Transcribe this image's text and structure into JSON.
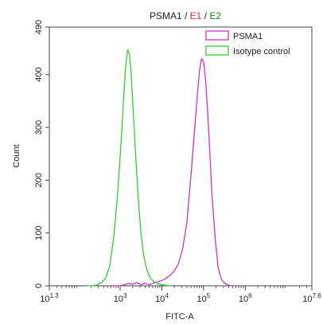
{
  "chart_data": {
    "type": "line",
    "title_parts": [
      {
        "text": "PSMA1",
        "color": "#222222"
      },
      {
        "text": " / ",
        "color": "#222222"
      },
      {
        "text": "E1",
        "color": "#d32f2f"
      },
      {
        "text": " / ",
        "color": "#222222"
      },
      {
        "text": "E2",
        "color": "#1a8f1a"
      }
    ],
    "xlabel": "FITC-A",
    "ylabel": "Count",
    "x_scale": "log10",
    "xlim": [
      1.3,
      7.6
    ],
    "ylim": [
      0,
      490
    ],
    "x_ticks": [
      {
        "exp": 1.3,
        "base": "10",
        "sup": "1.3"
      },
      {
        "exp": 3,
        "base": "10",
        "sup": "3"
      },
      {
        "exp": 4,
        "base": "10",
        "sup": "4"
      },
      {
        "exp": 5,
        "base": "10",
        "sup": "5"
      },
      {
        "exp": 6,
        "base": "10",
        "sup": "6"
      },
      {
        "exp": 7.6,
        "base": "10",
        "sup": "7.6"
      }
    ],
    "y_ticks": [
      0,
      100,
      200,
      300,
      400,
      490
    ],
    "legend_position": "top-right",
    "grid": false,
    "series": [
      {
        "name": "PSMA1",
        "color": "#cc33cc",
        "points": [
          [
            2.8,
            0
          ],
          [
            3.0,
            0
          ],
          [
            3.1,
            2
          ],
          [
            3.2,
            4
          ],
          [
            3.3,
            3
          ],
          [
            3.4,
            6
          ],
          [
            3.5,
            2
          ],
          [
            3.6,
            5
          ],
          [
            3.7,
            2
          ],
          [
            3.8,
            5
          ],
          [
            3.9,
            8
          ],
          [
            4.0,
            10
          ],
          [
            4.1,
            14
          ],
          [
            4.2,
            20
          ],
          [
            4.3,
            28
          ],
          [
            4.4,
            42
          ],
          [
            4.5,
            70
          ],
          [
            4.6,
            120
          ],
          [
            4.7,
            210
          ],
          [
            4.78,
            290
          ],
          [
            4.85,
            360
          ],
          [
            4.9,
            405
          ],
          [
            4.95,
            430
          ],
          [
            5.0,
            425
          ],
          [
            5.05,
            390
          ],
          [
            5.1,
            330
          ],
          [
            5.15,
            255
          ],
          [
            5.2,
            175
          ],
          [
            5.28,
            90
          ],
          [
            5.35,
            35
          ],
          [
            5.43,
            12
          ],
          [
            5.52,
            4
          ],
          [
            5.6,
            1
          ],
          [
            5.7,
            0
          ]
        ]
      },
      {
        "name": "Isotype control",
        "color": "#33cc33",
        "points": [
          [
            2.2,
            0
          ],
          [
            2.35,
            0
          ],
          [
            2.45,
            2
          ],
          [
            2.55,
            6
          ],
          [
            2.65,
            14
          ],
          [
            2.75,
            38
          ],
          [
            2.85,
            95
          ],
          [
            2.95,
            185
          ],
          [
            3.02,
            270
          ],
          [
            3.08,
            350
          ],
          [
            3.13,
            415
          ],
          [
            3.18,
            447
          ],
          [
            3.22,
            440
          ],
          [
            3.26,
            405
          ],
          [
            3.31,
            335
          ],
          [
            3.37,
            250
          ],
          [
            3.43,
            170
          ],
          [
            3.5,
            100
          ],
          [
            3.57,
            55
          ],
          [
            3.65,
            28
          ],
          [
            3.73,
            14
          ],
          [
            3.82,
            7
          ],
          [
            3.9,
            4
          ],
          [
            4.0,
            2
          ],
          [
            4.1,
            1
          ],
          [
            4.2,
            0
          ]
        ]
      }
    ]
  }
}
